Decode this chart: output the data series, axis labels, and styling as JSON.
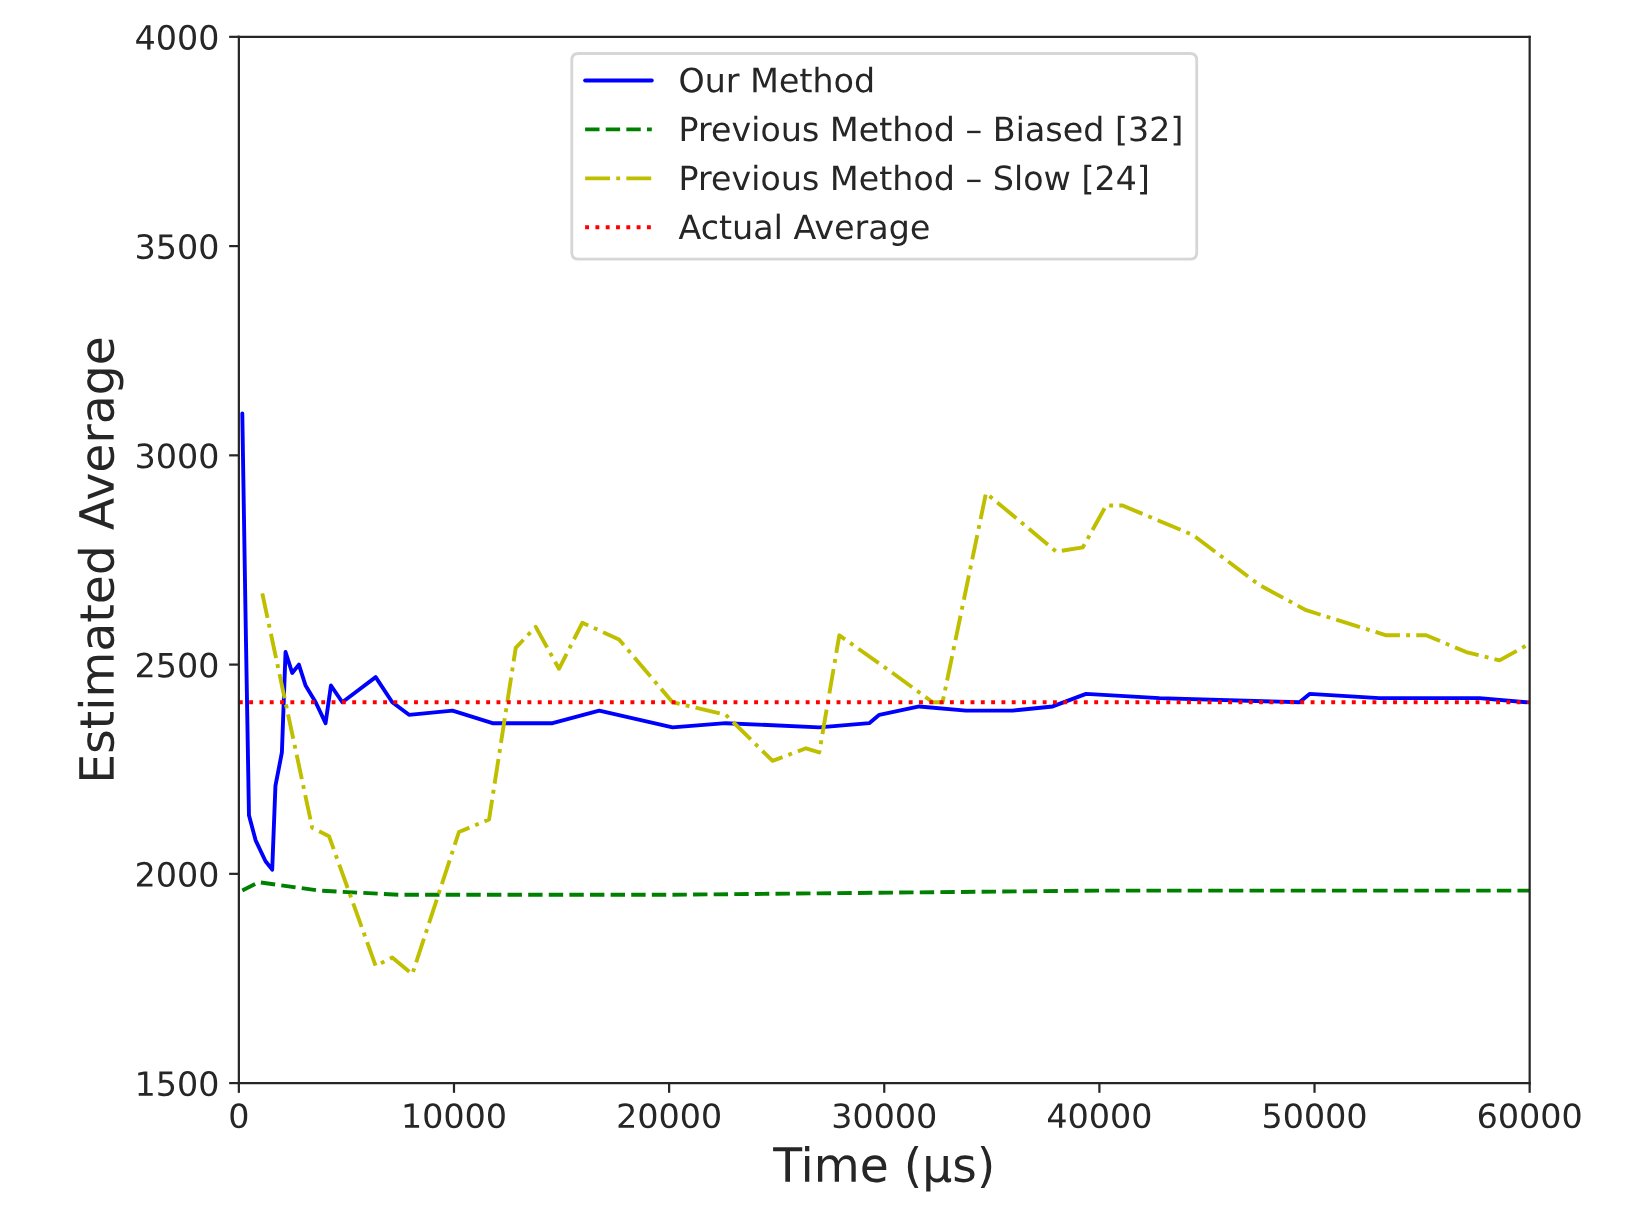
{
  "chart_data": {
    "type": "line",
    "xlabel": "Time (μs)",
    "ylabel": "Estimated Average",
    "xlim": [
      0,
      60000
    ],
    "ylim": [
      1500,
      4000
    ],
    "xticks": [
      0,
      10000,
      20000,
      30000,
      40000,
      50000,
      60000
    ],
    "yticks": [
      1500,
      2000,
      2500,
      3000,
      3500,
      4000
    ],
    "grid": false,
    "legend": "top",
    "marker": "none",
    "series": [
      {
        "name": "Our Method",
        "color": "#0000ff",
        "line_style": "solid",
        "x": [
          160,
          310,
          470,
          780,
          1240,
          1550,
          1700,
          2000,
          2170,
          2480,
          2790,
          3100,
          3570,
          4030,
          4280,
          4810,
          5580,
          6360,
          7130,
          7910,
          9930,
          11790,
          14580,
          16750,
          20160,
          22630,
          26980,
          29300,
          29770,
          31630,
          33800,
          35970,
          37830,
          39380,
          42790,
          49300,
          49770,
          53020,
          57670,
          59840
        ],
        "values": [
          3100,
          2620,
          2140,
          2080,
          2030,
          2010,
          2210,
          2290,
          2530,
          2480,
          2500,
          2450,
          2410,
          2360,
          2450,
          2410,
          2440,
          2470,
          2410,
          2380,
          2390,
          2360,
          2360,
          2390,
          2350,
          2360,
          2350,
          2360,
          2380,
          2400,
          2390,
          2390,
          2400,
          2430,
          2420,
          2410,
          2430,
          2420,
          2420,
          2410
        ]
      },
      {
        "name": "Previous Method – Biased [32]",
        "color": "#008000",
        "line_style": "dashed",
        "x": [
          160,
          930,
          3720,
          7440,
          20000,
          40000,
          60000
        ],
        "values": [
          1960,
          1980,
          1960,
          1950,
          1950,
          1960,
          1960
        ]
      },
      {
        "name": "Previous Method – Slow [24]",
        "color": "#bfbf00",
        "line_style": "dashdot",
        "x": [
          1090,
          3410,
          4190,
          6360,
          7130,
          8060,
          10230,
          11630,
          12870,
          13800,
          14880,
          15970,
          17670,
          20160,
          22630,
          24810,
          26360,
          26980,
          27910,
          30390,
          32250,
          32710,
          34730,
          37990,
          39230,
          40310,
          41080,
          44340,
          47440,
          49610,
          53330,
          55190,
          57050,
          58600,
          60000
        ],
        "values": [
          2670,
          2110,
          2090,
          1780,
          1800,
          1760,
          2100,
          2130,
          2540,
          2590,
          2490,
          2600,
          2560,
          2410,
          2380,
          2270,
          2300,
          2290,
          2570,
          2480,
          2410,
          2410,
          2910,
          2770,
          2780,
          2880,
          2880,
          2810,
          2690,
          2630,
          2570,
          2570,
          2530,
          2510,
          2550
        ]
      },
      {
        "name": "Actual Average",
        "color": "#ff0000",
        "line_style": "dotted",
        "x": [
          0,
          60000
        ],
        "values": [
          2410,
          2410
        ]
      }
    ]
  }
}
